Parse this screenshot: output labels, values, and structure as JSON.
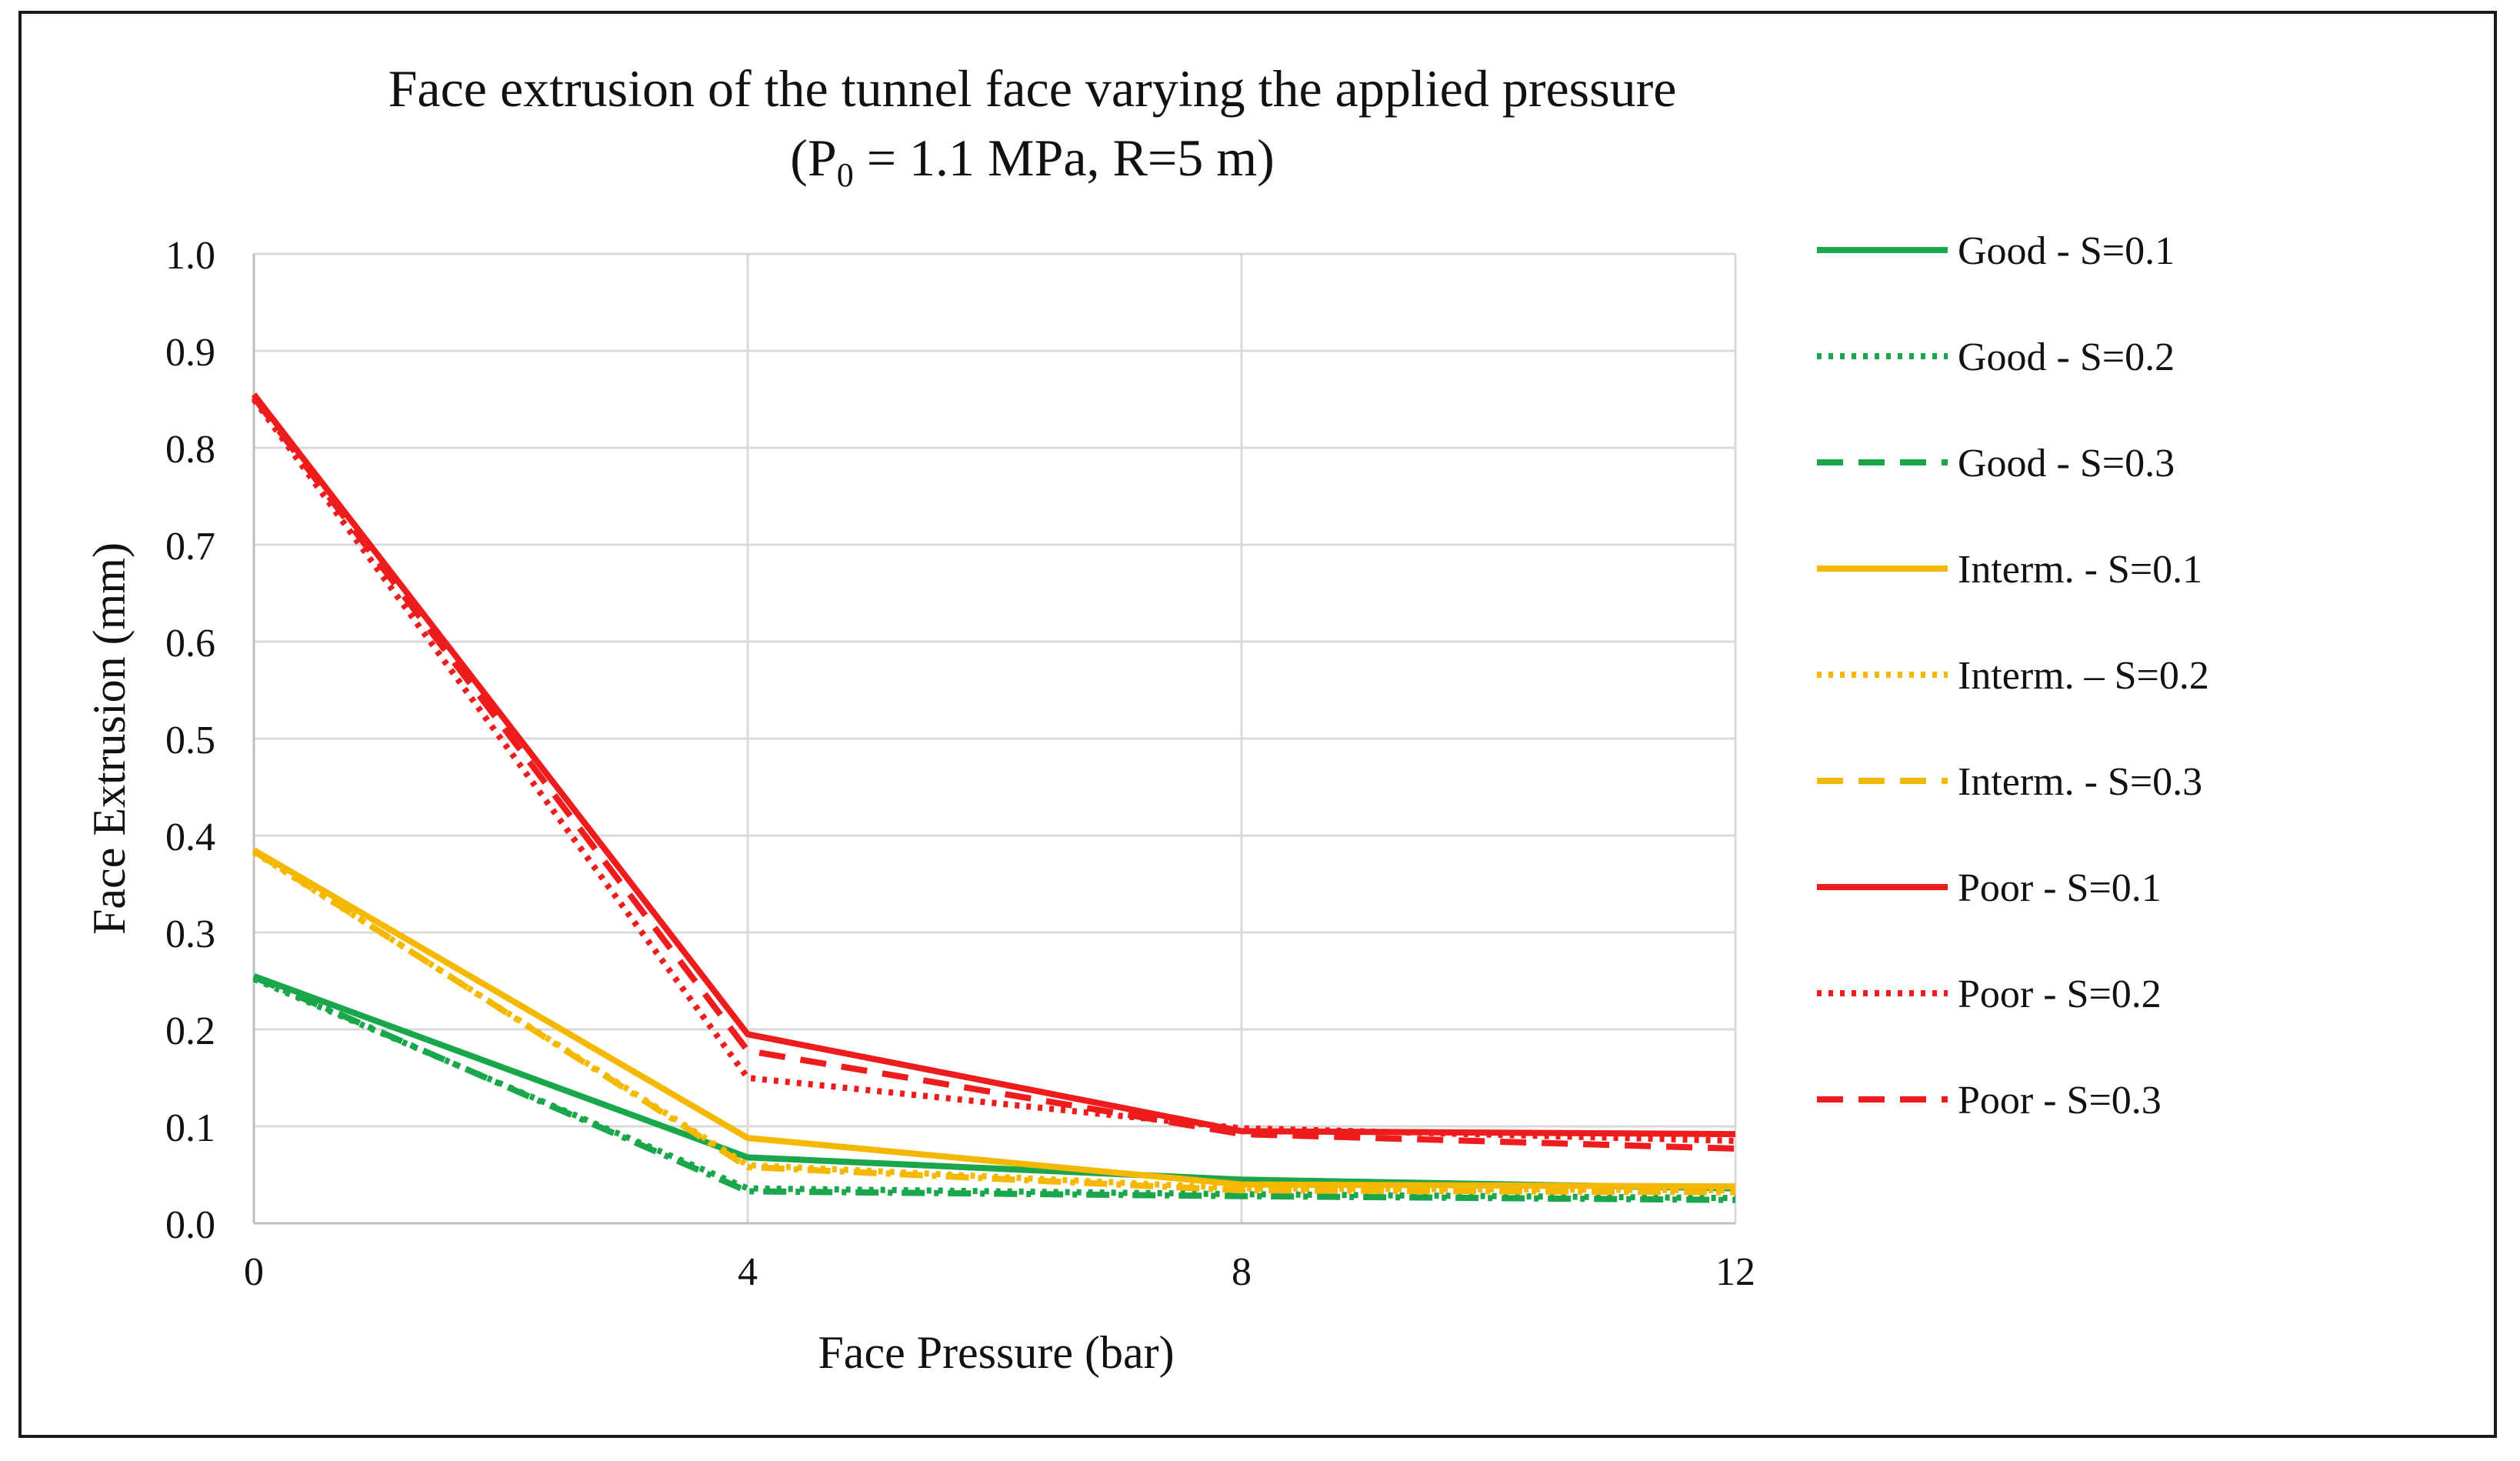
{
  "chart_data": {
    "type": "line",
    "title": "Face extrusion of the tunnel face varying the applied pressure",
    "subtitle": {
      "prefix": "(P",
      "sub": "0",
      "suffix": " = 1.1 MPa, R=5 m)"
    },
    "xlabel": "Face Pressure (bar)",
    "ylabel": "Face Extrusion (mm)",
    "xlim": [
      0,
      12
    ],
    "ylim": [
      0,
      1.0
    ],
    "xticks": [
      "0",
      "4",
      "8",
      "12"
    ],
    "yticks": [
      "0.0",
      "0.1",
      "0.2",
      "0.3",
      "0.4",
      "0.5",
      "0.6",
      "0.7",
      "0.8",
      "0.9",
      "1.0"
    ],
    "grid": true,
    "legend_position": "right",
    "x": [
      0,
      4,
      8,
      12
    ],
    "series": [
      {
        "name": "Good - S=0.1",
        "color": "#1aa64a",
        "style": "solid",
        "values": [
          0.255,
          0.068,
          0.045,
          0.036
        ]
      },
      {
        "name": "Good - S=0.2",
        "color": "#1aa64a",
        "style": "dotted",
        "values": [
          0.252,
          0.036,
          0.03,
          0.026
        ]
      },
      {
        "name": "Good - S=0.3",
        "color": "#1aa64a",
        "style": "dashdot",
        "values": [
          0.254,
          0.033,
          0.028,
          0.024
        ]
      },
      {
        "name": "Interm. - S=0.1",
        "color": "#f5b800",
        "style": "solid",
        "values": [
          0.385,
          0.088,
          0.04,
          0.038
        ]
      },
      {
        "name": "Interm. – S=0.2",
        "color": "#f5b800",
        "style": "dotted",
        "values": [
          0.383,
          0.06,
          0.036,
          0.034
        ]
      },
      {
        "name": "Interm. - S=0.3",
        "color": "#f5b800",
        "style": "dashdot",
        "values": [
          0.384,
          0.058,
          0.034,
          0.032
        ]
      },
      {
        "name": "Poor - S=0.1",
        "color": "#ee1c1c",
        "style": "solid",
        "values": [
          0.855,
          0.195,
          0.095,
          0.092
        ]
      },
      {
        "name": "Poor - S=0.2",
        "color": "#ee1c1c",
        "style": "dotted",
        "values": [
          0.85,
          0.15,
          0.098,
          0.085
        ]
      },
      {
        "name": "Poor - S=0.3",
        "color": "#ee1c1c",
        "style": "dashed",
        "values": [
          0.852,
          0.178,
          0.092,
          0.077
        ]
      }
    ],
    "legend": [
      {
        "label": "Good - S=0.1",
        "color": "#1aa64a",
        "style": "solid"
      },
      {
        "label": "Good - S=0.2",
        "color": "#1aa64a",
        "style": "dotted"
      },
      {
        "label": "Good - S=0.3",
        "color": "#1aa64a",
        "style": "dashed"
      },
      {
        "label": "Interm. - S=0.1",
        "color": "#f5b800",
        "style": "solid"
      },
      {
        "label": "Interm. – S=0.2",
        "color": "#f5b800",
        "style": "dotted"
      },
      {
        "label": "Interm. - S=0.3",
        "color": "#f5b800",
        "style": "dashed"
      },
      {
        "label": "Poor - S=0.1",
        "color": "#ee1c1c",
        "style": "solid"
      },
      {
        "label": "Poor - S=0.2",
        "color": "#ee1c1c",
        "style": "dotted"
      },
      {
        "label": "Poor - S=0.3",
        "color": "#ee1c1c",
        "style": "dashed"
      }
    ]
  }
}
